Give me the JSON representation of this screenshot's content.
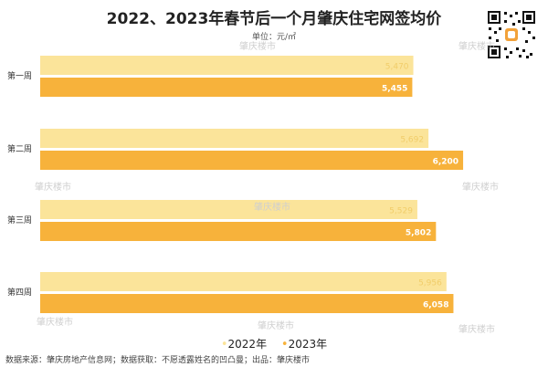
{
  "chart_data": {
    "type": "bar",
    "orientation": "horizontal",
    "title": "2022、2023年春节后一个月肇庆住宅网签均价",
    "unit_label": "单位：元/㎡",
    "categories": [
      "第一周",
      "第二周",
      "第三周",
      "第四周"
    ],
    "series": [
      {
        "name": "2022年",
        "color": "#fbe49a",
        "label_color": "#f1cd6a",
        "values": [
          5470,
          5692,
          5529,
          5956
        ]
      },
      {
        "name": "2023年",
        "color": "#f7b23b",
        "label_color": "#ffffff",
        "values": [
          5455,
          6200,
          5802,
          6058
        ]
      }
    ],
    "value_labels": [
      [
        "5,470",
        "5,692",
        "5,529",
        "5,956"
      ],
      [
        "5,455",
        "6,200",
        "5,802",
        "6,058"
      ]
    ],
    "xlim": [
      0,
      6400
    ],
    "grid": false,
    "legend": "bottom"
  },
  "footer": {
    "source": "数据来源：肇庆房地产信息网；数据获取：不愿透露姓名的凹凸曼；出品：肇庆楼市"
  },
  "watermark": "肇庆楼市"
}
